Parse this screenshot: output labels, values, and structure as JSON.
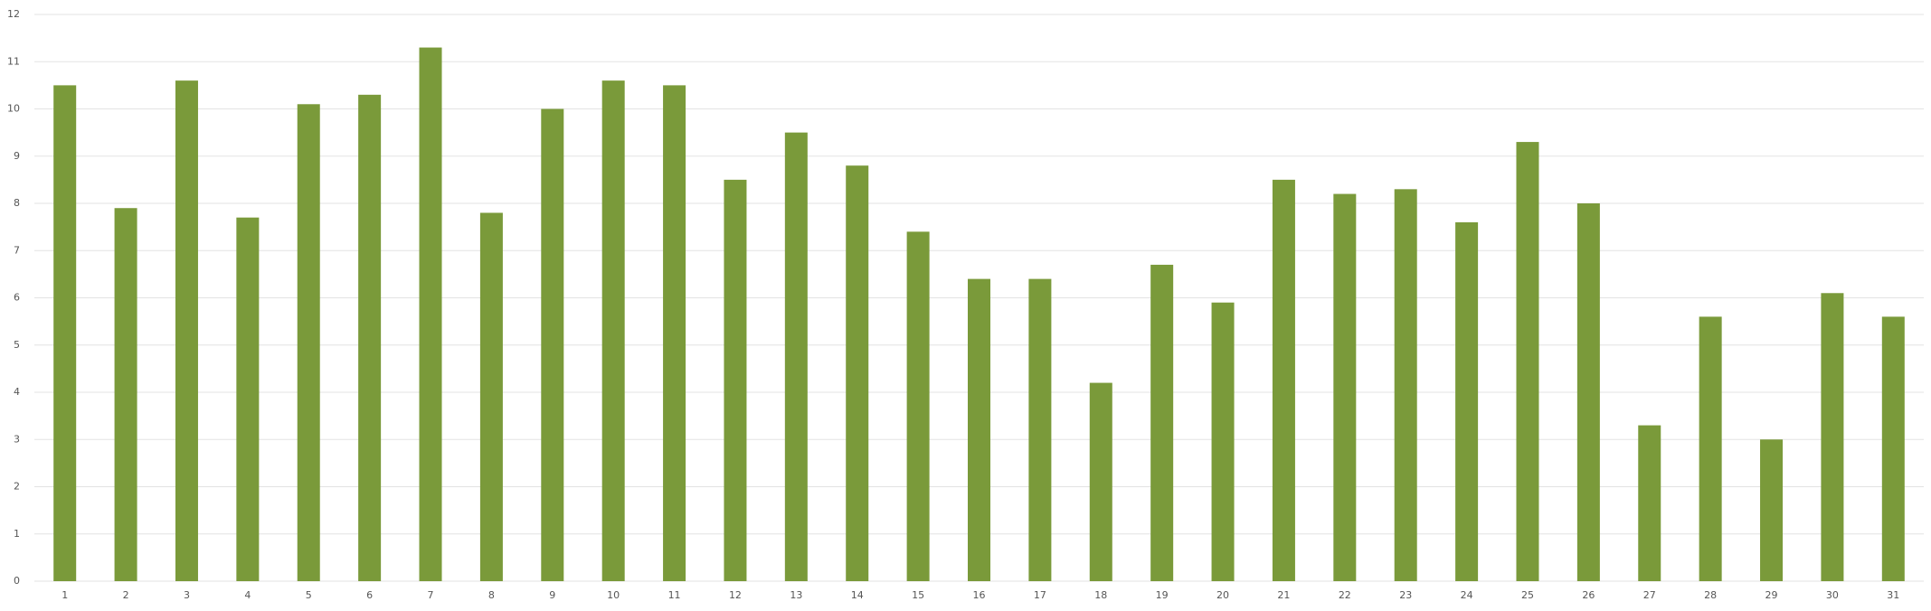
{
  "chart_data": {
    "type": "bar",
    "categories": [
      "1",
      "2",
      "3",
      "4",
      "5",
      "6",
      "7",
      "8",
      "9",
      "10",
      "11",
      "12",
      "13",
      "14",
      "15",
      "16",
      "17",
      "18",
      "19",
      "20",
      "21",
      "22",
      "23",
      "24",
      "25",
      "26",
      "27",
      "28",
      "29",
      "30",
      "31"
    ],
    "values": [
      10.5,
      7.9,
      10.6,
      7.7,
      10.1,
      10.3,
      11.3,
      7.8,
      10,
      10.6,
      10.5,
      8.5,
      9.5,
      8.8,
      7.4,
      6.4,
      6.4,
      4.2,
      6.7,
      5.9,
      8.5,
      8.2,
      8.3,
      7.6,
      9.3,
      8,
      3.3,
      5.6,
      3,
      6.1,
      5.6
    ],
    "color": "#7a9a3a",
    "ylim": [
      0,
      12
    ],
    "yticks": [
      0,
      1,
      2,
      3,
      4,
      5,
      6,
      7,
      8,
      9,
      10,
      11,
      12
    ],
    "grid": true
  }
}
